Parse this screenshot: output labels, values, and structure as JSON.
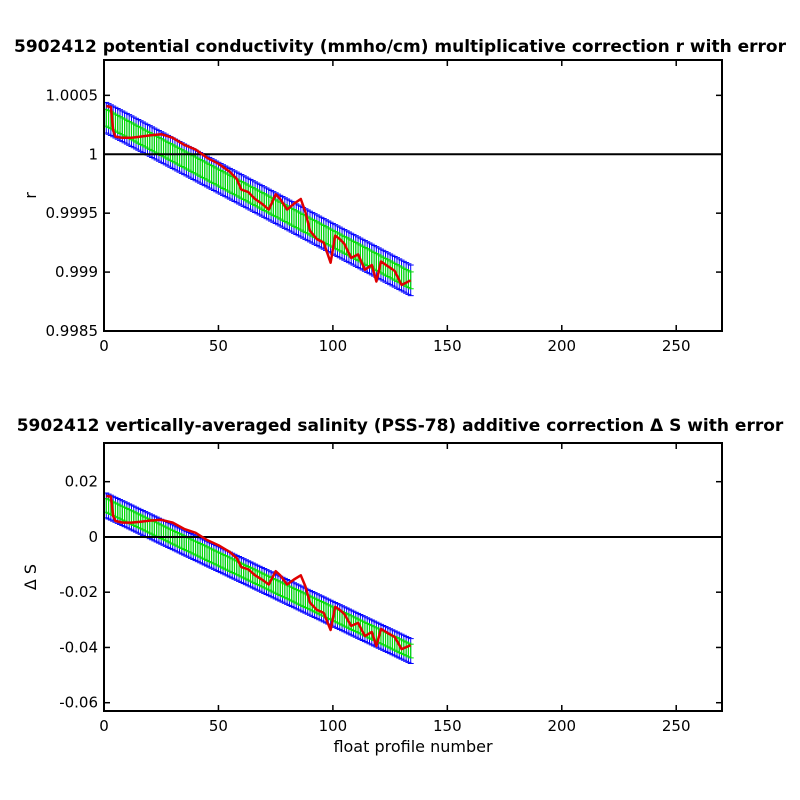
{
  "chart_data": [
    {
      "type": "line",
      "title": "5902412 potential conductivity (mmho/cm) multiplicative correction r with error",
      "xlabel": "",
      "ylabel": "r",
      "xlim": [
        0,
        270
      ],
      "ylim": [
        0.9985,
        1.0008
      ],
      "x_ticks": [
        0,
        50,
        100,
        150,
        200,
        250
      ],
      "x_tick_labels": [
        "0",
        "50",
        "100",
        "150",
        "200",
        "250"
      ],
      "y_ticks": [
        0.9985,
        0.999,
        0.9995,
        1,
        1.0005
      ],
      "y_tick_labels": [
        "0.9985",
        "0.999",
        "0.9995",
        "1",
        "1.0005"
      ],
      "grid": false,
      "reference_line": {
        "y": 1,
        "color": "#000000"
      },
      "series": [
        {
          "role": "fit-with-error",
          "color": "#00e000",
          "error_color": "#0000ff",
          "x_start": 1,
          "x_end": 134,
          "y_start": 1.00031,
          "y_end": 0.99893,
          "error_halfwidth": 0.00013
        },
        {
          "role": "raw-correction",
          "color": "#e00000",
          "x": [
            1,
            3,
            4,
            5,
            8,
            12,
            16,
            20,
            25,
            30,
            35,
            40,
            45,
            50,
            55,
            58,
            60,
            63,
            66,
            69,
            72,
            75,
            77,
            80,
            83,
            86,
            88,
            90,
            93,
            96,
            99,
            101,
            103,
            105,
            108,
            111,
            114,
            117,
            119,
            121,
            124,
            127,
            130,
            134
          ],
          "y": [
            1.00041,
            1.0004,
            1.0002,
            1.00015,
            1.00014,
            1.00014,
            1.00015,
            1.00016,
            1.00017,
            1.00014,
            1.00008,
            1.00004,
            0.99997,
            0.99992,
            0.99985,
            0.99979,
            0.9997,
            0.99968,
            0.99962,
            0.99958,
            0.99953,
            0.99966,
            0.99962,
            0.99953,
            0.99958,
            0.99962,
            0.99951,
            0.99935,
            0.99928,
            0.99925,
            0.99908,
            0.99931,
            0.99928,
            0.99924,
            0.99912,
            0.99915,
            0.99902,
            0.99906,
            0.99892,
            0.99909,
            0.99905,
            0.99901,
            0.99889,
            0.99893
          ]
        }
      ]
    },
    {
      "type": "line",
      "title": "5902412 vertically-averaged salinity (PSS-78) additive correction Δ S with error",
      "xlabel": "float profile number",
      "ylabel": "Δ S",
      "xlim": [
        0,
        270
      ],
      "ylim": [
        -0.063,
        0.034
      ],
      "x_ticks": [
        0,
        50,
        100,
        150,
        200,
        250
      ],
      "x_tick_labels": [
        "0",
        "50",
        "100",
        "150",
        "200",
        "250"
      ],
      "y_ticks": [
        -0.06,
        -0.04,
        -0.02,
        0,
        0.02
      ],
      "y_tick_labels": [
        "-0.06",
        "-0.04",
        "-0.02",
        "0",
        "0.02"
      ],
      "grid": false,
      "reference_line": {
        "y": 0,
        "color": "#000000"
      },
      "series": [
        {
          "role": "fit-with-error",
          "color": "#00e000",
          "error_color": "#0000ff",
          "x_start": 1,
          "x_end": 134,
          "y_start": 0.0114,
          "y_end": -0.0413,
          "error_halfwidth": 0.0045
        },
        {
          "role": "raw-correction",
          "color": "#e00000",
          "x": [
            1,
            3,
            4,
            5,
            8,
            12,
            16,
            20,
            25,
            30,
            35,
            40,
            45,
            50,
            55,
            58,
            60,
            63,
            66,
            69,
            72,
            75,
            77,
            80,
            83,
            86,
            88,
            90,
            93,
            96,
            99,
            101,
            103,
            105,
            108,
            111,
            114,
            117,
            119,
            121,
            124,
            127,
            130,
            134
          ],
          "y": [
            0.0148,
            0.0146,
            0.0075,
            0.0058,
            0.0052,
            0.0052,
            0.0055,
            0.0059,
            0.0062,
            0.0052,
            0.0029,
            0.0015,
            -0.0011,
            -0.003,
            -0.0055,
            -0.0077,
            -0.0109,
            -0.0117,
            -0.0139,
            -0.0154,
            -0.0172,
            -0.0124,
            -0.0139,
            -0.0172,
            -0.0154,
            -0.0139,
            -0.0179,
            -0.0238,
            -0.0264,
            -0.0275,
            -0.0337,
            -0.0253,
            -0.0264,
            -0.0279,
            -0.0322,
            -0.0311,
            -0.0359,
            -0.0344,
            -0.0395,
            -0.0333,
            -0.0348,
            -0.0362,
            -0.0406,
            -0.0392
          ]
        }
      ]
    }
  ]
}
